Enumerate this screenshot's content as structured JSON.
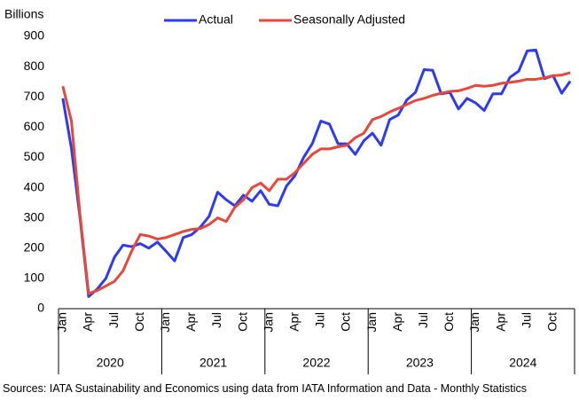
{
  "chart_data": {
    "type": "line",
    "y_label": "Billions",
    "categories": [
      "Jan",
      null,
      null,
      "Apr",
      null,
      null,
      "Jul",
      null,
      null,
      "Oct",
      null,
      null,
      "Jan",
      null,
      null,
      "Apr",
      null,
      null,
      "Jul",
      null,
      null,
      "Oct",
      null,
      null,
      "Jan",
      null,
      null,
      "Apr",
      null,
      null,
      "Jul",
      null,
      null,
      "Oct",
      null,
      null,
      "Jan",
      null,
      null,
      "Apr",
      null,
      null,
      "Jul",
      null,
      null,
      "Oct",
      null,
      null,
      "Jan",
      null,
      null,
      "Apr",
      null,
      null,
      "Jul",
      null,
      null,
      "Oct",
      null,
      null
    ],
    "groups": [
      "2020",
      "2021",
      "2022",
      "2023",
      "2024"
    ],
    "series": [
      {
        "name": "Actual",
        "color": "#2b3bef",
        "values": [
          695,
          530,
          300,
          40,
          65,
          100,
          170,
          210,
          205,
          215,
          200,
          220,
          190,
          158,
          235,
          245,
          270,
          305,
          385,
          360,
          340,
          375,
          355,
          390,
          345,
          340,
          405,
          440,
          500,
          545,
          620,
          610,
          545,
          545,
          510,
          555,
          580,
          540,
          625,
          640,
          690,
          715,
          790,
          788,
          710,
          715,
          660,
          695,
          680,
          655,
          710,
          710,
          765,
          785,
          852,
          855,
          760,
          770,
          712,
          752
        ]
      },
      {
        "name": "Seasonally Adjusted",
        "color": "#e8473a",
        "values": [
          735,
          620,
          310,
          50,
          60,
          75,
          90,
          125,
          190,
          245,
          240,
          230,
          235,
          245,
          255,
          262,
          265,
          278,
          300,
          288,
          335,
          360,
          400,
          415,
          390,
          428,
          428,
          450,
          480,
          510,
          528,
          528,
          535,
          540,
          565,
          580,
          625,
          635,
          650,
          662,
          675,
          688,
          695,
          705,
          712,
          718,
          720,
          728,
          738,
          735,
          738,
          745,
          748,
          752,
          758,
          758,
          763,
          770,
          772,
          780
        ]
      }
    ],
    "ylim": [
      0,
      900
    ],
    "yticks": [
      0,
      100,
      200,
      300,
      400,
      500,
      600,
      700,
      800,
      900
    ],
    "grid": false,
    "legend": "top",
    "source": "Sources: IATA Sustainability and Economics using data from IATA Information and Data - Monthly Statistics"
  }
}
